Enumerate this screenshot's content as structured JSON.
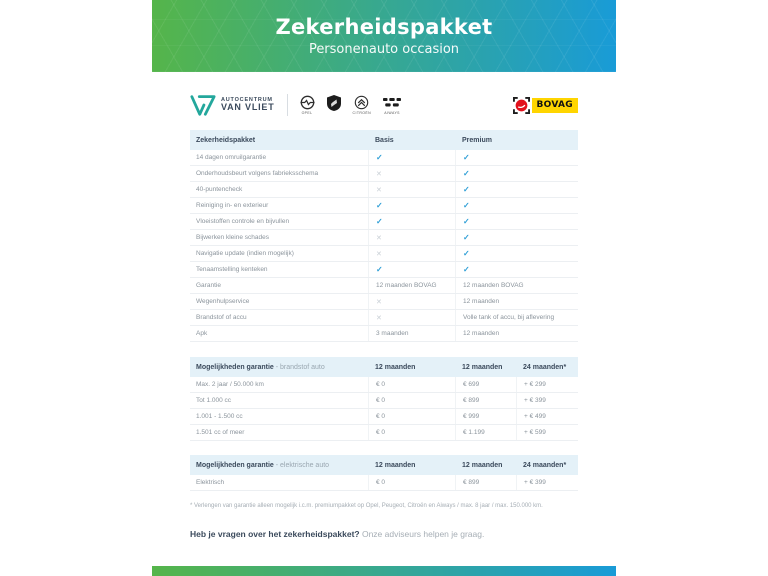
{
  "colors": {
    "gradient_from": "#55b54a",
    "gradient_to": "#199bd7",
    "navy_text": "#3b4a5c",
    "gray_text": "#8b949c",
    "check": "#2f9fd6",
    "cross": "#c8cfd5",
    "table_header_bg": "#e4f1f8",
    "dealer_teal": "#23a79c",
    "bovag_yellow": "#ffd500",
    "bovag_red": "#e2111c"
  },
  "hero": {
    "title": "Zekerheidspakket",
    "subtitle": "Personenauto occasion"
  },
  "branding": {
    "dealer_top": "AUTOCENTRUM",
    "dealer_bottom": "VAN VLIET",
    "brand_logos": [
      {
        "name": "opel-logo",
        "label": "OPEL"
      },
      {
        "name": "peugeot-logo",
        "label": ""
      },
      {
        "name": "citroen-logo",
        "label": "CITROËN"
      },
      {
        "name": "aiways-logo",
        "label": "AIWAYS"
      }
    ],
    "bovag_label": "BOVAG"
  },
  "package_table": {
    "header": {
      "name": "Zekerheidspakket",
      "col1": "Basis",
      "col2": "Premium"
    },
    "rows": [
      {
        "label": "14 dagen omruilgarantie",
        "basis": "CHECK",
        "premium": "CHECK"
      },
      {
        "label": "Onderhoudsbeurt volgens fabrieksschema",
        "basis": "CROSS",
        "premium": "CHECK"
      },
      {
        "label": "40-puntencheck",
        "basis": "CROSS",
        "premium": "CHECK"
      },
      {
        "label": "Reiniging in- en exterieur",
        "basis": "CHECK",
        "premium": "CHECK"
      },
      {
        "label": "Vloeistoffen controle en bijvullen",
        "basis": "CHECK",
        "premium": "CHECK"
      },
      {
        "label": "Bijwerken kleine schades",
        "basis": "CROSS",
        "premium": "CHECK"
      },
      {
        "label": "Navigatie update (indien mogelijk)",
        "basis": "CROSS",
        "premium": "CHECK"
      },
      {
        "label": "Tenaamstelling kenteken",
        "basis": "CHECK",
        "premium": "CHECK"
      },
      {
        "label": "Garantie",
        "basis": "12 maanden BOVAG",
        "premium": "12 maanden BOVAG"
      },
      {
        "label": "Wegenhulpservice",
        "basis": "CROSS",
        "premium": "12 maanden"
      },
      {
        "label": "Brandstof of accu",
        "basis": "CROSS",
        "premium": "Volle tank of accu, bij aflevering"
      },
      {
        "label": "Apk",
        "basis": "3 maanden",
        "premium": "12 maanden"
      }
    ]
  },
  "fuel_table": {
    "header": {
      "title_bold": "Mogelijkheden garantie",
      "title_light": " - brandstof auto",
      "col1": "12 maanden",
      "col2": "12 maanden",
      "col3": "24 maanden*"
    },
    "rows": [
      {
        "label": "Max. 2 jaar / 50.000 km",
        "m12a": "€ 0",
        "m12b": "€ 699",
        "m24": "+ € 299"
      },
      {
        "label": "Tot 1.000 cc",
        "m12a": "€ 0",
        "m12b": "€ 899",
        "m24": "+ € 399"
      },
      {
        "label": "1.001 - 1.500 cc",
        "m12a": "€ 0",
        "m12b": "€ 999",
        "m24": "+ € 499"
      },
      {
        "label": "1.501 cc of meer",
        "m12a": "€ 0",
        "m12b": "€ 1.199",
        "m24": "+ € 599"
      }
    ]
  },
  "electric_table": {
    "header": {
      "title_bold": "Mogelijkheden garantie",
      "title_light": " - elektrische auto",
      "col1": "12 maanden",
      "col2": "12 maanden",
      "col3": "24 maanden*"
    },
    "rows": [
      {
        "label": "Elektrisch",
        "m12a": "€ 0",
        "m12b": "€ 899",
        "m24": "+ € 399"
      }
    ]
  },
  "footnote": "* Verlengen van garantie alleen mogelijk i.c.m. premiumpakket op Opel, Peugeot, Citroën en Aiways / max. 8 jaar / max. 150.000 km.",
  "cta": {
    "question": "Heb je vragen over het zekerheidspakket?",
    "answer": " Onze adviseurs helpen je graag."
  }
}
